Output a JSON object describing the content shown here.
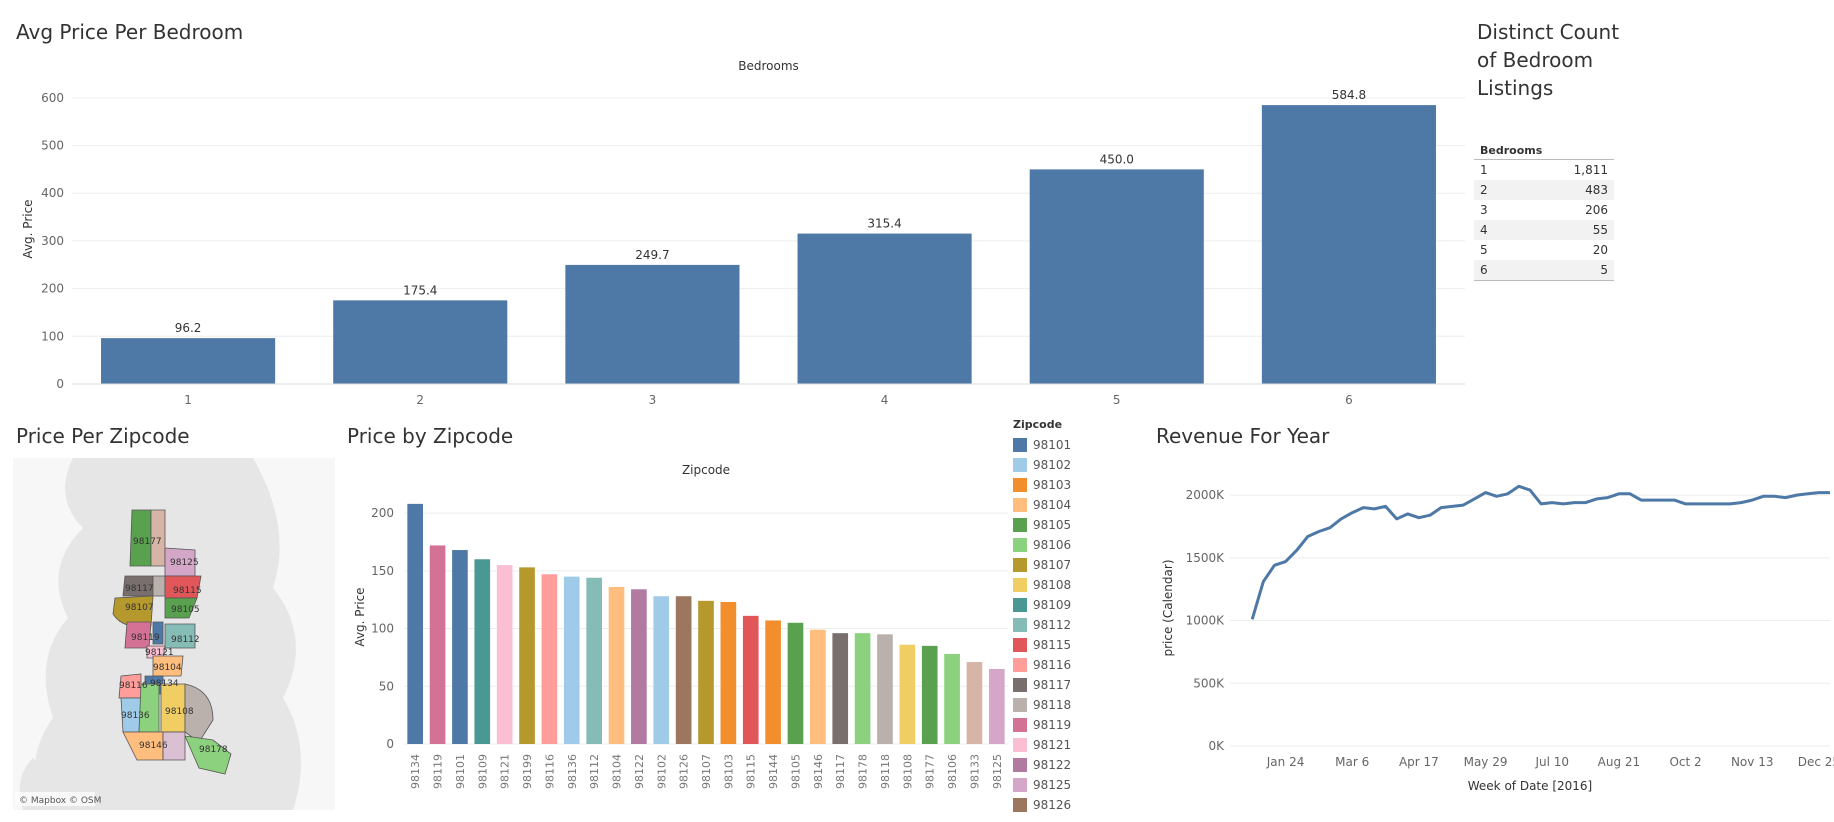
{
  "sections": {
    "bedroom_title": "Avg Price Per Bedroom",
    "distinct_title": "Distinct Count of Bedroom Listings",
    "map_title": "Price Per Zipcode",
    "zip_title": "Price by Zipcode",
    "revenue_title": "Revenue For Year"
  },
  "distinct_table": {
    "header": "Bedrooms",
    "rows": [
      {
        "bedrooms": "1",
        "count": "1,811"
      },
      {
        "bedrooms": "2",
        "count": "483"
      },
      {
        "bedrooms": "3",
        "count": "206"
      },
      {
        "bedrooms": "4",
        "count": "55"
      },
      {
        "bedrooms": "5",
        "count": "20"
      },
      {
        "bedrooms": "6",
        "count": "5"
      }
    ]
  },
  "map": {
    "attribution": "© Mapbox © OSM",
    "zip_labels": [
      "98177",
      "98125",
      "98117",
      "98115",
      "98107",
      "98105",
      "98119",
      "98112",
      "98121",
      "98104",
      "98116",
      "98134",
      "98136",
      "98108",
      "98146",
      "98178"
    ]
  },
  "colors": {
    "bar_blue": "#4e79a7",
    "line_blue": "#4e79a7"
  },
  "chart_data": [
    {
      "type": "bar",
      "title": "Avg Price Per Bedroom",
      "header": "Bedrooms",
      "categories": [
        "1",
        "2",
        "3",
        "4",
        "5",
        "6"
      ],
      "values": [
        96.2,
        175.4,
        249.7,
        315.4,
        450.0,
        584.8
      ],
      "value_labels": [
        "96.2",
        "175.4",
        "249.7",
        "315.4",
        "450.0",
        "584.8"
      ],
      "ylabel": "Avg. Price",
      "ylim": [
        0,
        650
      ],
      "yticks": [
        0,
        100,
        200,
        300,
        400,
        500,
        600
      ]
    },
    {
      "type": "bar",
      "title": "Price by Zipcode",
      "header": "Zipcode",
      "categories": [
        "98134",
        "98119",
        "98101",
        "98109",
        "98121",
        "98199",
        "98116",
        "98136",
        "98112",
        "98104",
        "98122",
        "98102",
        "98126",
        "98107",
        "98103",
        "98115",
        "98144",
        "98105",
        "98146",
        "98117",
        "98178",
        "98118",
        "98108",
        "98177",
        "98106",
        "98133",
        "98125"
      ],
      "values": [
        208,
        172,
        168,
        160,
        155,
        153,
        147,
        145,
        144,
        136,
        134,
        128,
        128,
        124,
        123,
        111,
        107,
        105,
        99,
        96,
        96,
        95,
        86,
        85,
        78,
        71,
        65
      ],
      "bar_colors": [
        "#4e79a7",
        "#d37295",
        "#4e79a7",
        "#499894",
        "#fabfd2",
        "#b6992d",
        "#ff9d9a",
        "#a0cbe8",
        "#86bcb6",
        "#ffbe7d",
        "#b07aa1",
        "#a0cbe8",
        "#9d7660",
        "#b6992d",
        "#f28e2b",
        "#e15759",
        "#f28e2b",
        "#59a14f",
        "#ffbe7d",
        "#79706e",
        "#8cd17d",
        "#bab0ac",
        "#f1ce63",
        "#59a14f",
        "#8cd17d",
        "#d7b5a6",
        "#d4a6c8"
      ],
      "ylabel": "Avg. Price",
      "ylim": [
        0,
        220
      ],
      "yticks": [
        0,
        50,
        100,
        150,
        200
      ],
      "legend": {
        "title": "Zipcode",
        "items": [
          {
            "label": "98101",
            "color": "#4e79a7"
          },
          {
            "label": "98102",
            "color": "#a0cbe8"
          },
          {
            "label": "98103",
            "color": "#f28e2b"
          },
          {
            "label": "98104",
            "color": "#ffbe7d"
          },
          {
            "label": "98105",
            "color": "#59a14f"
          },
          {
            "label": "98106",
            "color": "#8cd17d"
          },
          {
            "label": "98107",
            "color": "#b6992d"
          },
          {
            "label": "98108",
            "color": "#f1ce63"
          },
          {
            "label": "98109",
            "color": "#499894"
          },
          {
            "label": "98112",
            "color": "#86bcb6"
          },
          {
            "label": "98115",
            "color": "#e15759"
          },
          {
            "label": "98116",
            "color": "#ff9d9a"
          },
          {
            "label": "98117",
            "color": "#79706e"
          },
          {
            "label": "98118",
            "color": "#bab0ac"
          },
          {
            "label": "98119",
            "color": "#d37295"
          },
          {
            "label": "98121",
            "color": "#fabfd2"
          },
          {
            "label": "98122",
            "color": "#b07aa1"
          },
          {
            "label": "98125",
            "color": "#d4a6c8"
          },
          {
            "label": "98126",
            "color": "#9d7660"
          }
        ]
      }
    },
    {
      "type": "line",
      "title": "Revenue For Year",
      "xlabel": "Week of Date [2016]",
      "ylabel": "price (Calendar)",
      "x_ticks": [
        "Jan 24",
        "Mar 6",
        "Apr 17",
        "May 29",
        "Jul 10",
        "Aug 21",
        "Oct 2",
        "Nov 13",
        "Dec 25"
      ],
      "x_tick_weeks": [
        3,
        9,
        15,
        21,
        27,
        33,
        39,
        45,
        51
      ],
      "y_ticks": [
        "0K",
        "500K",
        "1000K",
        "1500K",
        "2000K"
      ],
      "y_tick_values": [
        0,
        500000,
        1000000,
        1500000,
        2000000
      ],
      "ylim": [
        0,
        2200000
      ],
      "xlim": [
        -2,
        52
      ],
      "weeks": [
        0,
        1,
        2,
        3,
        4,
        5,
        6,
        7,
        8,
        9,
        10,
        11,
        12,
        13,
        14,
        15,
        16,
        17,
        18,
        19,
        20,
        21,
        22,
        23,
        24,
        25,
        26,
        27,
        28,
        29,
        30,
        31,
        32,
        33,
        34,
        35,
        36,
        37,
        38,
        39,
        40,
        41,
        42,
        43,
        44,
        45,
        46,
        47,
        48,
        49,
        50,
        51,
        52
      ],
      "values": [
        1010000,
        1310000,
        1440000,
        1470000,
        1560000,
        1670000,
        1710000,
        1740000,
        1810000,
        1860000,
        1900000,
        1890000,
        1910000,
        1810000,
        1850000,
        1820000,
        1840000,
        1900000,
        1910000,
        1920000,
        1970000,
        2020000,
        1990000,
        2010000,
        2070000,
        2040000,
        1930000,
        1940000,
        1930000,
        1940000,
        1940000,
        1970000,
        1980000,
        2010000,
        2010000,
        1960000,
        1960000,
        1960000,
        1960000,
        1930000,
        1930000,
        1930000,
        1930000,
        1930000,
        1940000,
        1960000,
        1990000,
        1990000,
        1980000,
        2000000,
        2010000,
        2020000,
        2020000
      ]
    }
  ]
}
